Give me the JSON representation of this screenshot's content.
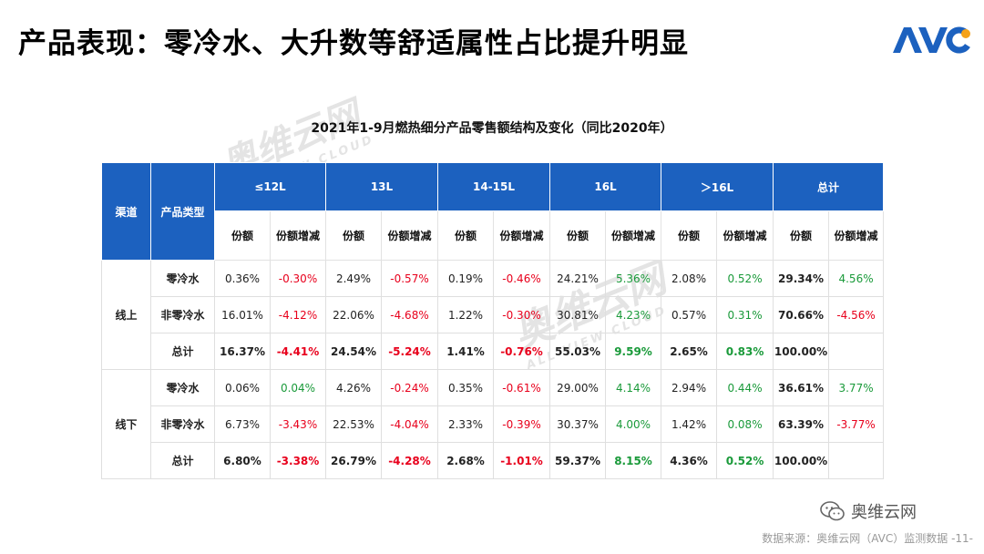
{
  "page_title": "产品表现：零冷水、大升数等舒适属性占比提升明显",
  "logo_text": "AVC",
  "watermark": {
    "main": "奥维云网",
    "sub": "ALL VIEW CLOUD"
  },
  "table_title": "2021年1-9月燃热细分产品零售额结构及变化（同比2020年）",
  "headers": {
    "channel": "渠道",
    "product_type": "产品类型",
    "groups": [
      "≤12L",
      "13L",
      "14-15L",
      "16L",
      "＞16L",
      "总计"
    ],
    "share": "份额",
    "share_change": "份额增减"
  },
  "rows": [
    {
      "channel": "线上",
      "type": "零冷水",
      "cells": [
        "0.36%",
        "-0.30%",
        "2.49%",
        "-0.57%",
        "0.19%",
        "-0.46%",
        "24.21%",
        "5.36%",
        "2.08%",
        "0.52%",
        "29.34%",
        "4.56%"
      ]
    },
    {
      "channel": "",
      "type": "非零冷水",
      "cells": [
        "16.01%",
        "-4.12%",
        "22.06%",
        "-4.68%",
        "1.22%",
        "-0.30%",
        "30.81%",
        "4.23%",
        "0.57%",
        "0.31%",
        "70.66%",
        "-4.56%"
      ]
    },
    {
      "channel": "",
      "type": "总计",
      "cells": [
        "16.37%",
        "-4.41%",
        "24.54%",
        "-5.24%",
        "1.41%",
        "-0.76%",
        "55.03%",
        "9.59%",
        "2.65%",
        "0.83%",
        "100.00%",
        ""
      ]
    },
    {
      "channel": "线下",
      "type": "零冷水",
      "cells": [
        "0.06%",
        "0.04%",
        "4.26%",
        "-0.24%",
        "0.35%",
        "-0.61%",
        "29.00%",
        "4.14%",
        "2.94%",
        "0.44%",
        "36.61%",
        "3.77%"
      ]
    },
    {
      "channel": "",
      "type": "非零冷水",
      "cells": [
        "6.73%",
        "-3.43%",
        "22.53%",
        "-4.04%",
        "2.33%",
        "-0.39%",
        "30.37%",
        "4.00%",
        "1.42%",
        "0.08%",
        "63.39%",
        "-3.77%"
      ]
    },
    {
      "channel": "",
      "type": "总计",
      "cells": [
        "6.80%",
        "-3.38%",
        "26.79%",
        "-4.28%",
        "2.68%",
        "-1.01%",
        "59.37%",
        "8.15%",
        "4.36%",
        "0.52%",
        "100.00%",
        ""
      ]
    }
  ],
  "footer_brand": "奥维云网",
  "footer_source": "数据来源：奥维云网（AVC）监测数据 -11-",
  "colors": {
    "header_blue": "#1c61bf",
    "negative": "#e8001c",
    "positive": "#1a9a3a"
  }
}
